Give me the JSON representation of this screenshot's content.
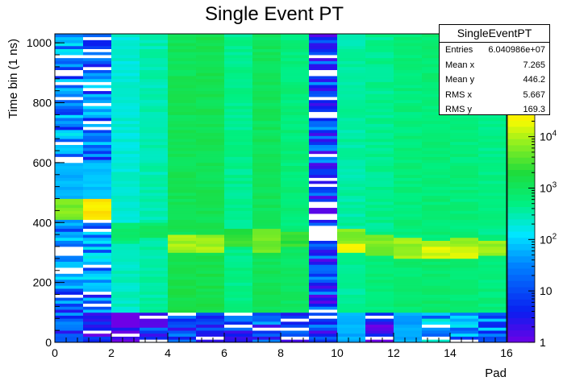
{
  "chart_data": {
    "type": "heatmap",
    "title": "Single Event PT",
    "xlabel": "Pad",
    "ylabel": "Time bin (1 ns)",
    "xlim": [
      0,
      16
    ],
    "ylim": [
      0,
      1030
    ],
    "x_ticks": [
      0,
      2,
      4,
      6,
      8,
      10,
      12,
      14,
      16
    ],
    "y_ticks": [
      0,
      200,
      400,
      600,
      800,
      1000
    ],
    "z_scale": "log",
    "zlim": [
      1,
      1000000
    ],
    "z_ticks": [
      {
        "value": 1,
        "base": "1",
        "exp": ""
      },
      {
        "value": 10,
        "base": "10",
        "exp": ""
      },
      {
        "value": 100,
        "base": "10",
        "exp": "2"
      },
      {
        "value": 1000,
        "base": "10",
        "exp": "3"
      },
      {
        "value": 10000,
        "base": "10",
        "exp": "4"
      }
    ],
    "columns": [
      {
        "pad": 0,
        "bands": [
          {
            "y": [
              0,
              40
            ],
            "z": 8
          },
          {
            "y": [
              40,
              120
            ],
            "z": 12
          },
          {
            "y": [
              120,
              200
            ],
            "z": 15
          },
          {
            "y": [
              200,
              410
            ],
            "z": 40
          },
          {
            "y": [
              410,
              480
            ],
            "z": 6000
          },
          {
            "y": [
              480,
              600
            ],
            "z": 60
          },
          {
            "y": [
              600,
              1030
            ],
            "z": 25
          }
        ]
      },
      {
        "pad": 1,
        "bands": [
          {
            "y": [
              0,
              100
            ],
            "z": 4
          },
          {
            "y": [
              100,
              200
            ],
            "z": 15
          },
          {
            "y": [
              200,
              410
            ],
            "z": 35
          },
          {
            "y": [
              410,
              480
            ],
            "z": 30000
          },
          {
            "y": [
              480,
              600
            ],
            "z": 80
          },
          {
            "y": [
              600,
              1030
            ],
            "z": 18
          }
        ]
      },
      {
        "pad": 2,
        "bands": [
          {
            "y": [
              0,
              100
            ],
            "z": 1
          },
          {
            "y": [
              100,
              330
            ],
            "z": 250
          },
          {
            "y": [
              330,
              400
            ],
            "z": 700
          },
          {
            "y": [
              400,
              1030
            ],
            "z": 200
          }
        ]
      },
      {
        "pad": 3,
        "bands": [
          {
            "y": [
              0,
              100
            ],
            "z": 8
          },
          {
            "y": [
              100,
              350
            ],
            "z": 350
          },
          {
            "y": [
              350,
              400
            ],
            "z": 900
          },
          {
            "y": [
              400,
              1030
            ],
            "z": 300
          }
        ]
      },
      {
        "pad": 4,
        "bands": [
          {
            "y": [
              0,
              100
            ],
            "z": 6
          },
          {
            "y": [
              100,
              300
            ],
            "z": 1500
          },
          {
            "y": [
              300,
              360
            ],
            "z": 9000
          },
          {
            "y": [
              360,
              1030
            ],
            "z": 1200
          }
        ]
      },
      {
        "pad": 5,
        "bands": [
          {
            "y": [
              0,
              100
            ],
            "z": 8
          },
          {
            "y": [
              100,
              300
            ],
            "z": 1500
          },
          {
            "y": [
              300,
              360
            ],
            "z": 9000
          },
          {
            "y": [
              360,
              1030
            ],
            "z": 1300
          }
        ]
      },
      {
        "pad": 6,
        "bands": [
          {
            "y": [
              0,
              100
            ],
            "z": 6
          },
          {
            "y": [
              100,
              320
            ],
            "z": 500
          },
          {
            "y": [
              320,
              380
            ],
            "z": 2500
          },
          {
            "y": [
              380,
              1030
            ],
            "z": 450
          }
        ]
      },
      {
        "pad": 7,
        "bands": [
          {
            "y": [
              0,
              100
            ],
            "z": 10
          },
          {
            "y": [
              100,
              300
            ],
            "z": 1200
          },
          {
            "y": [
              300,
              380
            ],
            "z": 5000
          },
          {
            "y": [
              380,
              1030
            ],
            "z": 1100
          }
        ]
      },
      {
        "pad": 8,
        "bands": [
          {
            "y": [
              0,
              100
            ],
            "z": 8
          },
          {
            "y": [
              100,
              320
            ],
            "z": 900
          },
          {
            "y": [
              320,
              370
            ],
            "z": 2500
          },
          {
            "y": [
              370,
              1030
            ],
            "z": 600
          }
        ]
      },
      {
        "pad": 9,
        "bands": [
          {
            "y": [
              0,
              1030
            ],
            "z": 8
          }
        ]
      },
      {
        "pad": 10,
        "bands": [
          {
            "y": [
              0,
              100
            ],
            "z": 60
          },
          {
            "y": [
              100,
              300
            ],
            "z": 400
          },
          {
            "y": [
              300,
              330
            ],
            "z": 20000
          },
          {
            "y": [
              330,
              380
            ],
            "z": 6000
          },
          {
            "y": [
              380,
              1030
            ],
            "z": 350
          }
        ]
      },
      {
        "pad": 11,
        "bands": [
          {
            "y": [
              0,
              100
            ],
            "z": 2
          },
          {
            "y": [
              100,
              290
            ],
            "z": 600
          },
          {
            "y": [
              290,
              360
            ],
            "z": 6000
          },
          {
            "y": [
              360,
              1030
            ],
            "z": 450
          }
        ]
      },
      {
        "pad": 12,
        "bands": [
          {
            "y": [
              0,
              100
            ],
            "z": 50
          },
          {
            "y": [
              100,
              280
            ],
            "z": 700
          },
          {
            "y": [
              280,
              350
            ],
            "z": 8000
          },
          {
            "y": [
              350,
              1030
            ],
            "z": 600
          }
        ]
      },
      {
        "pad": 13,
        "bands": [
          {
            "y": [
              0,
              100
            ],
            "z": 40
          },
          {
            "y": [
              100,
              280
            ],
            "z": 800
          },
          {
            "y": [
              280,
              320
            ],
            "z": 15000
          },
          {
            "y": [
              320,
              340
            ],
            "z": 9000
          },
          {
            "y": [
              340,
              1030
            ],
            "z": 650
          }
        ]
      },
      {
        "pad": 14,
        "bands": [
          {
            "y": [
              0,
              100
            ],
            "z": 30
          },
          {
            "y": [
              100,
              280
            ],
            "z": 700
          },
          {
            "y": [
              280,
              320
            ],
            "z": 14000
          },
          {
            "y": [
              320,
              350
            ],
            "z": 8000
          },
          {
            "y": [
              350,
              1030
            ],
            "z": 600
          }
        ]
      },
      {
        "pad": 15,
        "bands": [
          {
            "y": [
              0,
              100
            ],
            "z": 25
          },
          {
            "y": [
              100,
              290
            ],
            "z": 600
          },
          {
            "y": [
              290,
              340
            ],
            "z": 8000
          },
          {
            "y": [
              340,
              1030
            ],
            "z": 500
          }
        ]
      }
    ]
  },
  "stats": {
    "title": "SingleEventPT",
    "rows": [
      {
        "label": "Entries",
        "value": "6.040986e+07"
      },
      {
        "label": "Mean x",
        "value": "7.265"
      },
      {
        "label": "Mean y",
        "value": "446.2"
      },
      {
        "label": "RMS x",
        "value": "5.667"
      },
      {
        "label": "RMS y",
        "value": "169.3"
      }
    ]
  }
}
